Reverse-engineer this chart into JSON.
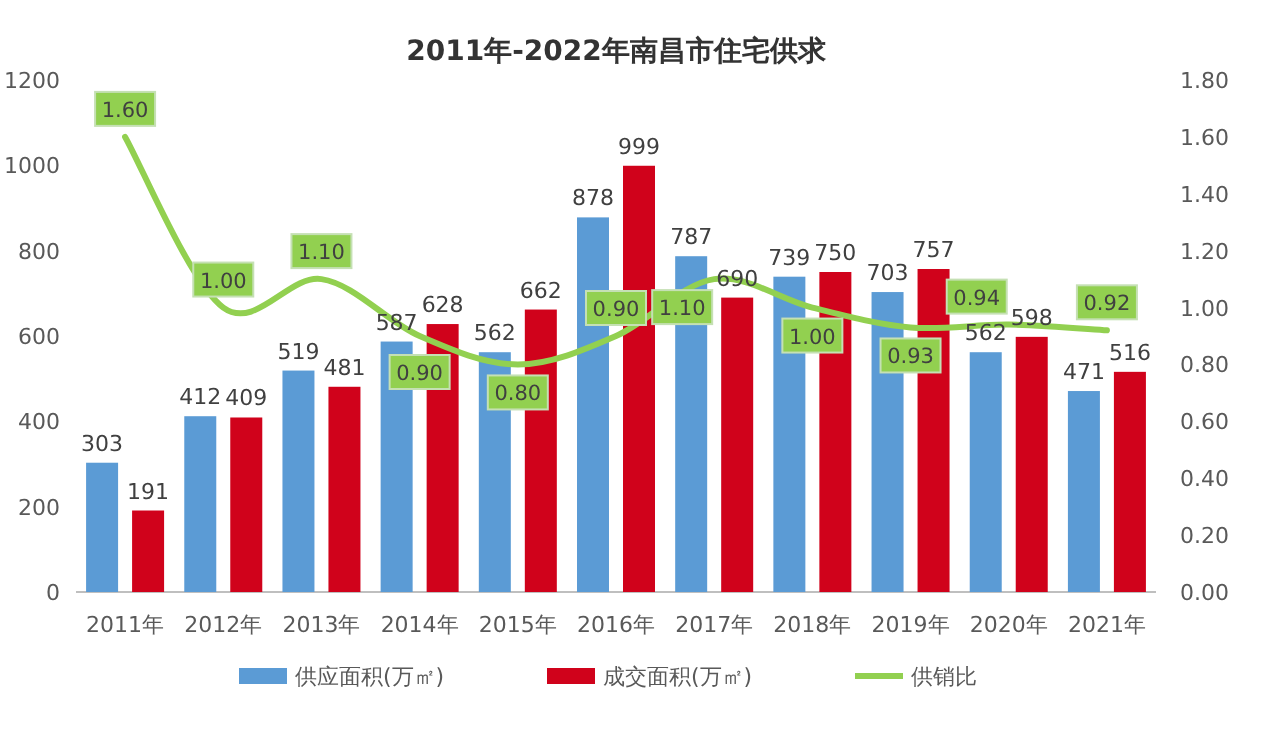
{
  "chart_data": {
    "type": "bar",
    "title": "2011年-2022年南昌市住宅供求",
    "categories": [
      "2011年",
      "2012年",
      "2013年",
      "2014年",
      "2015年",
      "2016年",
      "2017年",
      "2018年",
      "2019年",
      "2020年",
      "2021年"
    ],
    "series": [
      {
        "name": "供应面积(万㎡)",
        "color": "#5b9bd5",
        "values": [
          303,
          412,
          519,
          587,
          562,
          878,
          787,
          739,
          703,
          562,
          471
        ]
      },
      {
        "name": "成交面积(万㎡)",
        "color": "#d0021b",
        "values": [
          191,
          409,
          481,
          628,
          662,
          999,
          690,
          750,
          757,
          598,
          516
        ]
      },
      {
        "name": "供销比",
        "type": "line",
        "axis": "y2",
        "color": "#92d050",
        "values": [
          1.6,
          1.0,
          1.1,
          0.9,
          0.8,
          0.9,
          1.1,
          1.0,
          0.93,
          0.94,
          0.92
        ],
        "value_labels": [
          "1.60",
          "1.00",
          "1.10",
          "0.90",
          "0.80",
          "0.90",
          "1.10",
          "1.00",
          "0.93",
          "0.94",
          "0.92"
        ]
      }
    ],
    "ylim": [
      0,
      1200
    ],
    "yticks": [
      0,
      200,
      400,
      600,
      800,
      1000,
      1200
    ],
    "y2lim": [
      0,
      1.8
    ],
    "y2ticks": [
      {
        "value": 0,
        "label": "0.00"
      },
      {
        "value": 0.2,
        "label": "0.20"
      },
      {
        "value": 0.4,
        "label": "0.40"
      },
      {
        "value": 0.6,
        "label": "0.60"
      },
      {
        "value": 0.8,
        "label": "0.80"
      },
      {
        "value": 1.0,
        "label": "1.00"
      },
      {
        "value": 1.2,
        "label": "1.20"
      },
      {
        "value": 1.4,
        "label": "1.40"
      },
      {
        "value": 1.6,
        "label": "1.60"
      },
      {
        "value": 1.8,
        "label": "1.80"
      }
    ],
    "data_labels": true,
    "legend": "bottom",
    "marker": "none"
  }
}
